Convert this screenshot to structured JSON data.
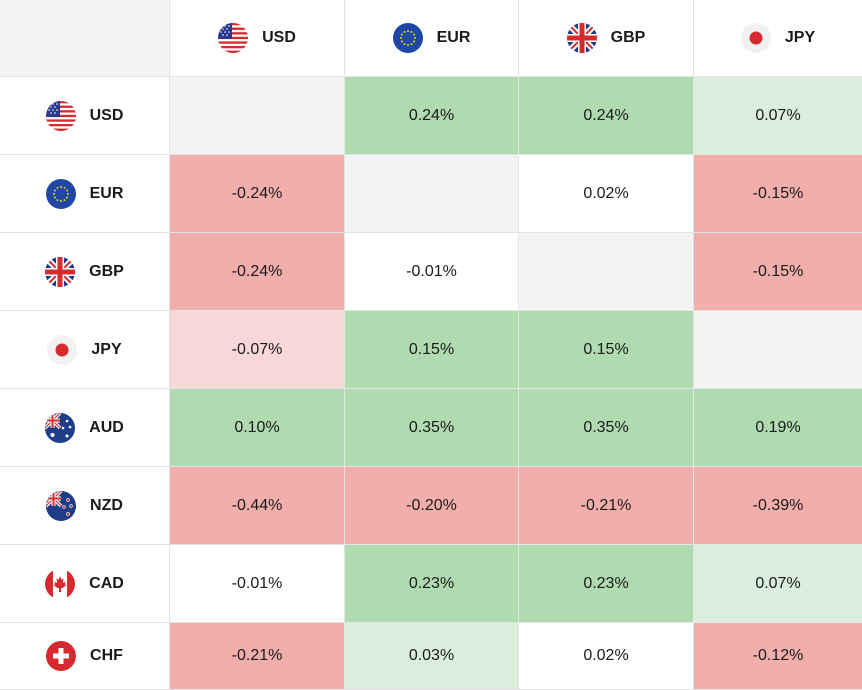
{
  "colors": {
    "same": "#f3f3f3",
    "neutral": "#ffffff",
    "strong_green": "#b0dbb0",
    "light_green": "#dbeedb",
    "strong_red": "#f2aeab",
    "light_red": "#f8d7d7"
  },
  "columns": [
    {
      "code": "USD",
      "flag_icon": "us-flag-icon"
    },
    {
      "code": "EUR",
      "flag_icon": "eu-flag-icon"
    },
    {
      "code": "GBP",
      "flag_icon": "uk-flag-icon"
    },
    {
      "code": "JPY",
      "flag_icon": "jp-flag-icon"
    }
  ],
  "rows": [
    {
      "code": "USD",
      "flag_icon": "us-flag-icon",
      "cells": [
        {
          "value": "",
          "shade": "same"
        },
        {
          "value": "0.24%",
          "shade": "strong_green"
        },
        {
          "value": "0.24%",
          "shade": "strong_green"
        },
        {
          "value": "0.07%",
          "shade": "light_green"
        }
      ]
    },
    {
      "code": "EUR",
      "flag_icon": "eu-flag-icon",
      "cells": [
        {
          "value": "-0.24%",
          "shade": "strong_red"
        },
        {
          "value": "",
          "shade": "same"
        },
        {
          "value": "0.02%",
          "shade": "neutral"
        },
        {
          "value": "-0.15%",
          "shade": "strong_red"
        }
      ]
    },
    {
      "code": "GBP",
      "flag_icon": "uk-flag-icon",
      "cells": [
        {
          "value": "-0.24%",
          "shade": "strong_red"
        },
        {
          "value": "-0.01%",
          "shade": "neutral"
        },
        {
          "value": "",
          "shade": "same"
        },
        {
          "value": "-0.15%",
          "shade": "strong_red"
        }
      ]
    },
    {
      "code": "JPY",
      "flag_icon": "jp-flag-icon",
      "cells": [
        {
          "value": "-0.07%",
          "shade": "light_red"
        },
        {
          "value": "0.15%",
          "shade": "strong_green"
        },
        {
          "value": "0.15%",
          "shade": "strong_green"
        },
        {
          "value": "",
          "shade": "same"
        }
      ]
    },
    {
      "code": "AUD",
      "flag_icon": "au-flag-icon",
      "cells": [
        {
          "value": "0.10%",
          "shade": "strong_green"
        },
        {
          "value": "0.35%",
          "shade": "strong_green"
        },
        {
          "value": "0.35%",
          "shade": "strong_green"
        },
        {
          "value": "0.19%",
          "shade": "strong_green"
        }
      ]
    },
    {
      "code": "NZD",
      "flag_icon": "nz-flag-icon",
      "cells": [
        {
          "value": "-0.44%",
          "shade": "strong_red"
        },
        {
          "value": "-0.20%",
          "shade": "strong_red"
        },
        {
          "value": "-0.21%",
          "shade": "strong_red"
        },
        {
          "value": "-0.39%",
          "shade": "strong_red"
        }
      ]
    },
    {
      "code": "CAD",
      "flag_icon": "ca-flag-icon",
      "cells": [
        {
          "value": "-0.01%",
          "shade": "neutral"
        },
        {
          "value": "0.23%",
          "shade": "strong_green"
        },
        {
          "value": "0.23%",
          "shade": "strong_green"
        },
        {
          "value": "0.07%",
          "shade": "light_green"
        }
      ]
    },
    {
      "code": "CHF",
      "flag_icon": "ch-flag-icon",
      "cells": [
        {
          "value": "-0.21%",
          "shade": "strong_red"
        },
        {
          "value": "0.03%",
          "shade": "light_green"
        },
        {
          "value": "0.02%",
          "shade": "neutral"
        },
        {
          "value": "-0.12%",
          "shade": "strong_red"
        }
      ]
    }
  ]
}
